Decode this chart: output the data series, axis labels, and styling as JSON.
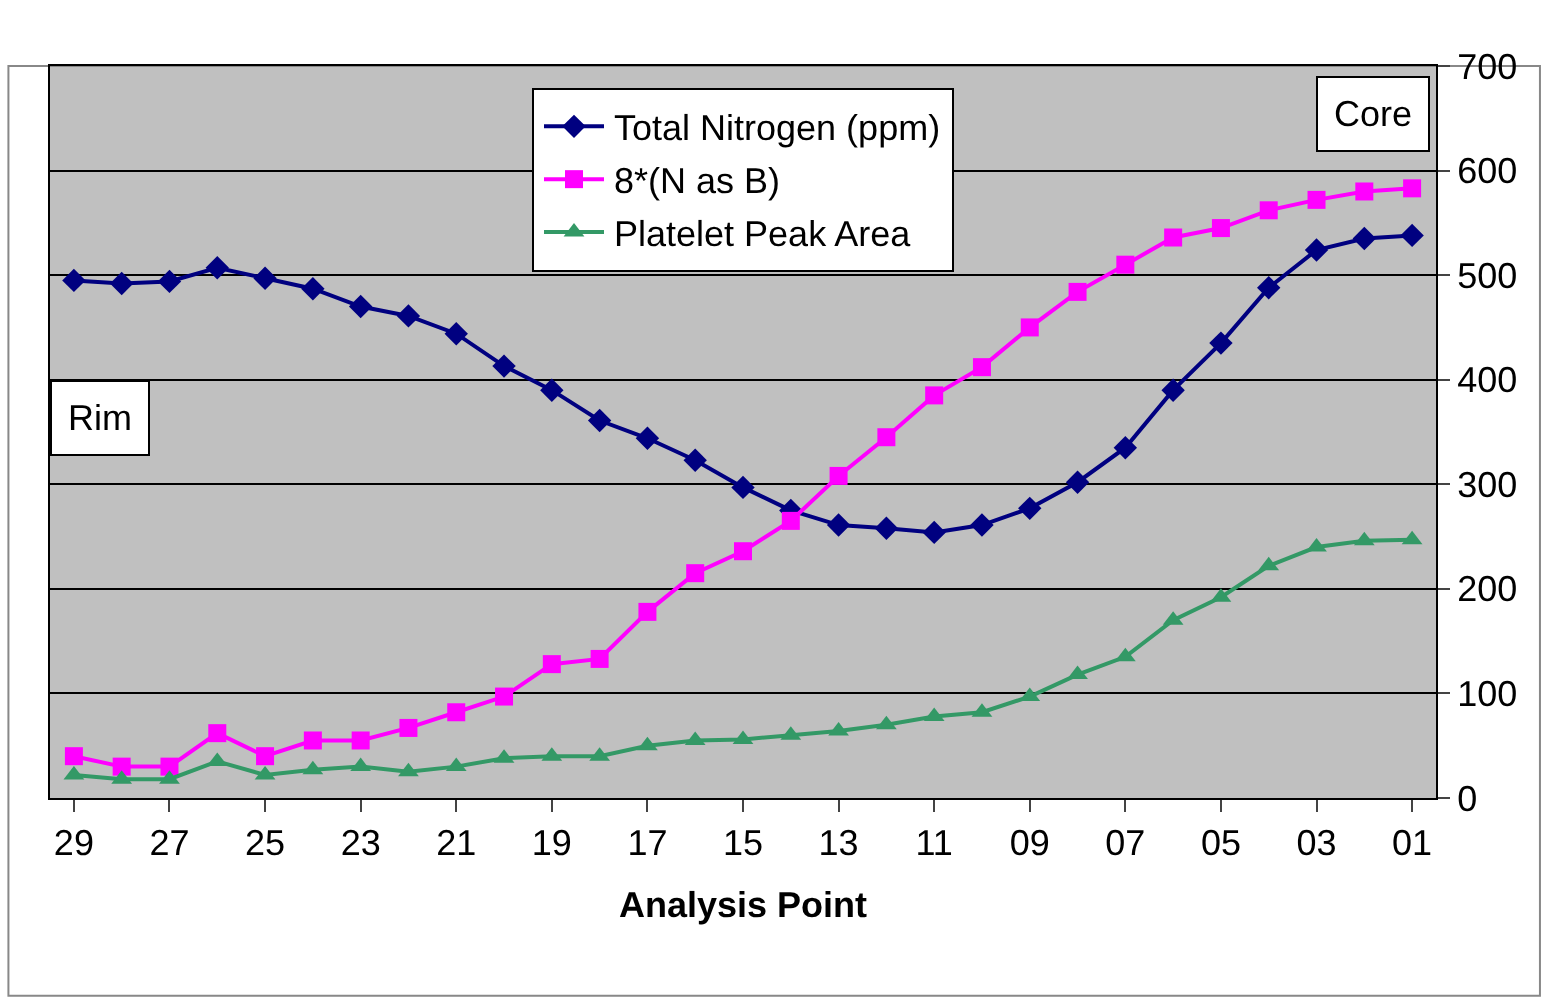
{
  "chart_data": {
    "type": "line",
    "xlabel": "Analysis Point",
    "categories": [
      "29",
      null,
      "27",
      null,
      "25",
      null,
      "23",
      null,
      "21",
      null,
      "19",
      null,
      "17",
      null,
      "15",
      null,
      "13",
      null,
      "11",
      null,
      "09",
      null,
      "07",
      null,
      "05",
      null,
      "03",
      null,
      "01"
    ],
    "series": [
      {
        "name": "Total Nitrogen (ppm)",
        "color": "#000080",
        "marker": "diamond",
        "values": [
          495,
          492,
          494,
          507,
          497,
          487,
          470,
          461,
          444,
          413,
          390,
          361,
          344,
          323,
          297,
          275,
          261,
          258,
          254,
          261,
          277,
          302,
          335,
          390,
          435,
          488,
          524,
          535,
          538
        ]
      },
      {
        "name": "8*(N as B)",
        "color": "#ff00ff",
        "marker": "square",
        "values": [
          40,
          30,
          30,
          62,
          40,
          55,
          55,
          67,
          82,
          97,
          128,
          133,
          178,
          215,
          236,
          265,
          308,
          345,
          385,
          412,
          450,
          484,
          510,
          536,
          545,
          562,
          572,
          580,
          583
        ]
      },
      {
        "name": "Platelet Peak Area",
        "color": "#339966",
        "marker": "triangle",
        "values": [
          22,
          18,
          18,
          35,
          22,
          27,
          30,
          25,
          30,
          38,
          40,
          40,
          50,
          55,
          56,
          60,
          64,
          70,
          78,
          82,
          97,
          118,
          135,
          170,
          192,
          222,
          240,
          246,
          247
        ]
      }
    ],
    "ylim": [
      0,
      700
    ],
    "yticks": [
      0,
      100,
      200,
      300,
      400,
      500,
      600,
      700
    ],
    "grid": "y",
    "legend": "top",
    "annotations": [
      "Rim",
      "Core"
    ]
  }
}
